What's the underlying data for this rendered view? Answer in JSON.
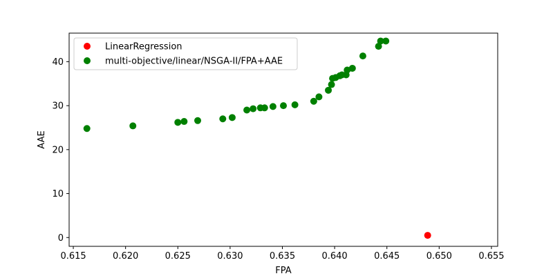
{
  "chart_data": {
    "type": "scatter",
    "title": "",
    "xlabel": "FPA",
    "ylabel": "AAE",
    "xlim": [
      0.6146,
      0.6556
    ],
    "ylim": [
      -2.0,
      46.5
    ],
    "xticks": [
      0.615,
      0.62,
      0.625,
      0.63,
      0.635,
      0.64,
      0.645,
      0.65,
      0.655
    ],
    "xtick_labels": [
      "0.615",
      "0.620",
      "0.625",
      "0.630",
      "0.635",
      "0.640",
      "0.645",
      "0.650",
      "0.655"
    ],
    "yticks": [
      0,
      10,
      20,
      30,
      40
    ],
    "ytick_labels": [
      "0",
      "10",
      "20",
      "30",
      "40"
    ],
    "grid": false,
    "legend_position": "top-left",
    "series": [
      {
        "name": "LinearRegression",
        "color": "#ff0000",
        "points": [
          {
            "x": 0.6489,
            "y": 0.5
          }
        ]
      },
      {
        "name": "multi-objective/linear/NSGA-II/FPA+AAE",
        "color": "#008000",
        "points": [
          {
            "x": 0.6163,
            "y": 24.8
          },
          {
            "x": 0.6207,
            "y": 25.4
          },
          {
            "x": 0.625,
            "y": 26.2
          },
          {
            "x": 0.6256,
            "y": 26.4
          },
          {
            "x": 0.6269,
            "y": 26.6
          },
          {
            "x": 0.6293,
            "y": 27.0
          },
          {
            "x": 0.6302,
            "y": 27.3
          },
          {
            "x": 0.6316,
            "y": 29.0
          },
          {
            "x": 0.6322,
            "y": 29.3
          },
          {
            "x": 0.6329,
            "y": 29.5
          },
          {
            "x": 0.6333,
            "y": 29.5
          },
          {
            "x": 0.6341,
            "y": 29.8
          },
          {
            "x": 0.6351,
            "y": 30.0
          },
          {
            "x": 0.6362,
            "y": 30.2
          },
          {
            "x": 0.638,
            "y": 31.0
          },
          {
            "x": 0.6385,
            "y": 32.0
          },
          {
            "x": 0.6394,
            "y": 33.5
          },
          {
            "x": 0.6397,
            "y": 34.8
          },
          {
            "x": 0.6398,
            "y": 36.2
          },
          {
            "x": 0.6401,
            "y": 36.4
          },
          {
            "x": 0.6405,
            "y": 36.8
          },
          {
            "x": 0.6407,
            "y": 37.0
          },
          {
            "x": 0.6411,
            "y": 37.0
          },
          {
            "x": 0.6412,
            "y": 38.1
          },
          {
            "x": 0.6417,
            "y": 38.5
          },
          {
            "x": 0.6427,
            "y": 41.3
          },
          {
            "x": 0.6442,
            "y": 43.5
          },
          {
            "x": 0.6444,
            "y": 44.7
          },
          {
            "x": 0.6449,
            "y": 44.7
          }
        ]
      }
    ]
  }
}
